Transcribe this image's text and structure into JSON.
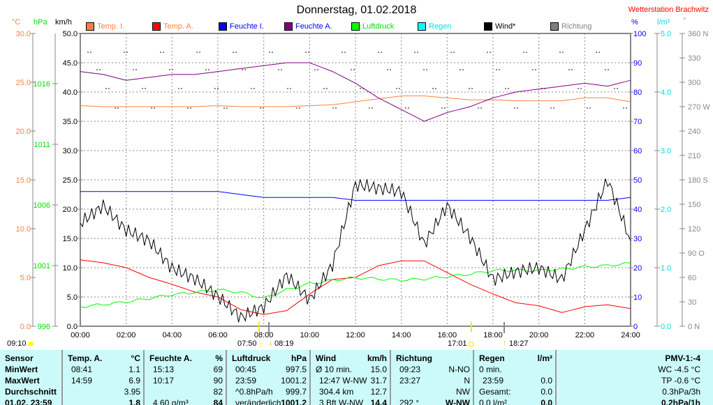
{
  "header": {
    "title": "Donnerstag, 01.02.2018",
    "station": "Wetterstation Brachwitz"
  },
  "units": {
    "temp": "°C",
    "pressure": "hPa",
    "wind": "km/h",
    "humidity": "%",
    "rain": "l/m²",
    "direction": "°"
  },
  "legend": [
    {
      "label": "Temp. I.",
      "color": "#ff8040",
      "text_color": "#ff8040"
    },
    {
      "label": "Temp. A.",
      "color": "#ff0000",
      "text_color": "#ff8040"
    },
    {
      "label": "Feuchte I.",
      "color": "#0000ff",
      "text_color": "#0000ff"
    },
    {
      "label": "Feuchte A.",
      "color": "#800080",
      "text_color": "#0000ff"
    },
    {
      "label": "Luftdruck",
      "color": "#00ff00",
      "text_color": "#00dd00"
    },
    {
      "label": "Regen",
      "color": "#00ffff",
      "text_color": "#00e0e0"
    },
    {
      "label": "Wind*",
      "color": "#000000",
      "text_color": "#000000"
    },
    {
      "label": "Richtung",
      "color": "#808080",
      "text_color": "#808080"
    }
  ],
  "chart_data": {
    "type": "line",
    "title": "Donnerstag, 01.02.2018",
    "x": [
      0,
      1,
      2,
      3,
      4,
      5,
      6,
      7,
      8,
      9,
      10,
      11,
      12,
      13,
      14,
      15,
      16,
      17,
      18,
      19,
      20,
      21,
      22,
      23,
      24
    ],
    "xticks": [
      "00:00",
      "02:00",
      "04:00",
      "06:00",
      "08:00",
      "10:00",
      "12:00",
      "14:00",
      "16:00",
      "18:00",
      "20:00",
      "22:00",
      "24:00"
    ],
    "axes": {
      "temp": {
        "ticks": [
          "30.0",
          "25.0",
          "20.0",
          "15.0",
          "10.0",
          "5.0",
          "0.0"
        ],
        "range": [
          0,
          30
        ]
      },
      "pressure": {
        "ticks": [
          "1016",
          "1011",
          "1006",
          "1001",
          "996"
        ],
        "range": [
          996,
          1020.1
        ]
      },
      "wind": {
        "ticks": [
          "50.0",
          "45.0",
          "40.0",
          "35.0",
          "30.0",
          "25.0",
          "20.0",
          "15.0",
          "10.0",
          "5.0",
          "0.0"
        ],
        "range": [
          0,
          50
        ]
      },
      "humidity": {
        "ticks": [
          "100",
          "90",
          "80",
          "70",
          "60",
          "50",
          "40",
          "30",
          "20",
          "10",
          "0"
        ],
        "range": [
          0,
          100
        ]
      },
      "rain": {
        "ticks": [
          "5.0",
          "4.0",
          "3.0",
          "2.0",
          "1.0",
          "0.0"
        ],
        "range": [
          0,
          5
        ]
      },
      "direction": {
        "ticks": [
          "360 N",
          "330",
          "300",
          "270 W",
          "240",
          "210",
          "180 S",
          "150",
          "120",
          "90 O",
          "60",
          "30",
          "0   N"
        ],
        "range": [
          0,
          360
        ]
      }
    },
    "series": [
      {
        "name": "Temp. I.",
        "axis": "temp",
        "color": "#ff8040",
        "values": [
          22.6,
          22.5,
          22.5,
          22.5,
          22.5,
          22.5,
          22.6,
          22.5,
          22.5,
          22.5,
          22.6,
          22.7,
          23.0,
          23.3,
          23.6,
          23.6,
          23.4,
          23.2,
          23.2,
          23.1,
          23.1,
          23.1,
          23.4,
          23.4,
          23.0
        ]
      },
      {
        "name": "Temp. A.",
        "axis": "temp",
        "color": "#ff0000",
        "values": [
          6.8,
          6.5,
          6.0,
          5.0,
          4.3,
          3.5,
          3.0,
          1.7,
          1.2,
          1.6,
          3.3,
          4.8,
          5.0,
          6.2,
          6.7,
          6.7,
          5.5,
          4.3,
          3.3,
          2.4,
          2.1,
          1.4,
          2.0,
          2.2,
          1.8
        ]
      },
      {
        "name": "Feuchte I.",
        "axis": "humidity",
        "color": "#0000ff",
        "values": [
          46,
          46,
          46,
          46,
          46,
          46,
          46,
          45,
          44,
          44,
          44,
          44,
          43,
          43,
          43,
          43,
          43,
          43,
          43,
          43,
          43,
          43,
          43,
          43,
          44
        ]
      },
      {
        "name": "Feuchte A.",
        "axis": "humidity",
        "color": "#800080",
        "values": [
          87,
          86,
          84,
          85,
          86,
          86,
          87,
          88,
          89,
          90,
          90,
          87,
          83,
          78,
          74,
          70,
          73,
          75,
          78,
          80,
          81,
          82,
          83,
          82,
          84
        ]
      },
      {
        "name": "Luftdruck",
        "axis": "pressure",
        "color": "#00ff00",
        "values": [
          997.6,
          997.8,
          998.0,
          998.3,
          998.6,
          998.8,
          999.0,
          998.8,
          998.3,
          999.0,
          999.5,
          999.8,
          1000.0,
          999.9,
          999.8,
          999.9,
          1000.1,
          1000.3,
          1000.6,
          1000.6,
          1000.6,
          1000.7,
          1000.9,
          1001.0,
          1001.2
        ]
      },
      {
        "name": "Wind*",
        "axis": "wind",
        "color": "#000000",
        "values": [
          17.6,
          20.6,
          16.4,
          14.6,
          9.9,
          8.1,
          5.1,
          1.5,
          3.3,
          8.7,
          4.5,
          10.5,
          24.2,
          23.6,
          23.0,
          14.0,
          20.6,
          15.2,
          8.0,
          9.3,
          10.0,
          8.0,
          16.4,
          25.0,
          14.6
        ]
      }
    ]
  },
  "markers": {
    "moonrise": "09:10",
    "sunrise": "07:50",
    "moonset": "08:19",
    "sunset": "17:01",
    "moonrise2": "18:27"
  },
  "table": {
    "columns": [
      {
        "h": [
          "Sensor",
          ""
        ],
        "rows": [
          [
            "MinWert",
            ""
          ],
          [
            "MaxWert",
            ""
          ],
          [
            "Durchschnitt",
            ""
          ],
          [
            "01.02. 23:59",
            ""
          ]
        ]
      },
      {
        "h": [
          "Temp. A.",
          "°C"
        ],
        "rows": [
          [
            "08:41",
            "1.1"
          ],
          [
            "14:59",
            "6.9"
          ],
          [
            "",
            "3.95"
          ],
          [
            "",
            "1.8"
          ]
        ]
      },
      {
        "h": [
          "Feuchte A.",
          "%"
        ],
        "rows": [
          [
            "15:13",
            "69"
          ],
          [
            "10:17",
            "90"
          ],
          [
            "",
            "82"
          ],
          [
            "4.60 g/m³",
            "84"
          ]
        ]
      },
      {
        "h": [
          "Luftdruck",
          "hPa"
        ],
        "rows": [
          [
            "00:45",
            "997.5"
          ],
          [
            "23:59",
            "1001.2"
          ],
          [
            "^0.8hPa/h",
            "999.7"
          ],
          [
            "veränderlich",
            "1001.2"
          ]
        ]
      },
      {
        "h": [
          "Wind",
          "km/h"
        ],
        "rows": [
          [
            "Ø 10 min.",
            "15.0"
          ],
          [
            "12:47   W-NW",
            "31.7"
          ],
          [
            "304.4 km",
            "12.7"
          ],
          [
            "3 Bft W-NW",
            "14.4"
          ]
        ]
      },
      {
        "h": [
          "Richtung",
          ""
        ],
        "rows": [
          [
            "09:23",
            "N-NO"
          ],
          [
            "23:27",
            "N"
          ],
          [
            "",
            "NW"
          ],
          [
            "292 °",
            "W-NW"
          ]
        ]
      },
      {
        "h": [
          "Regen",
          "l/m²"
        ],
        "rows": [
          [
            "0 min.",
            ""
          ],
          [
            "23:59",
            "0.0"
          ],
          [
            "Gesamt:",
            "0.0"
          ],
          [
            "0.0 l/m²",
            "0.0"
          ]
        ]
      },
      {
        "h": [
          "",
          "PMV-1:-4"
        ],
        "rows": [
          [
            "",
            "WC -4.5 °C"
          ],
          [
            "",
            "TP -0.6 °C"
          ],
          [
            "",
            "0.3hPa/3h"
          ],
          [
            "",
            "0.2hPa/1h"
          ]
        ]
      }
    ]
  }
}
